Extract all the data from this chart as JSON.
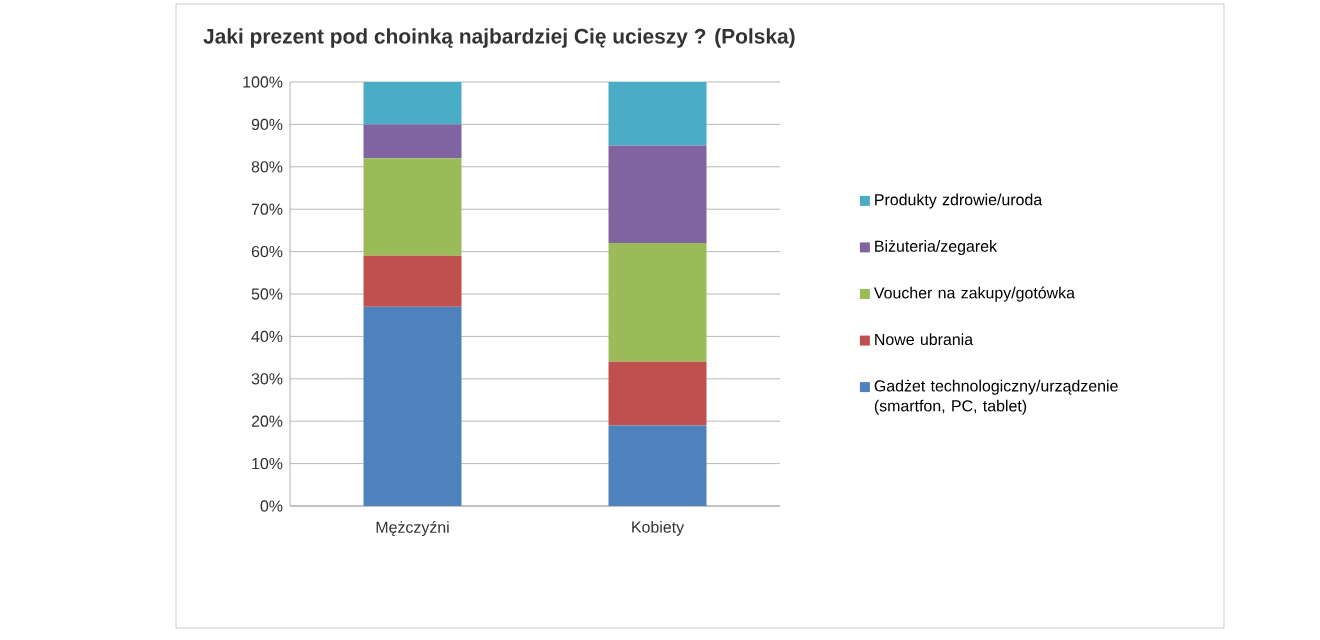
{
  "chart_data": {
    "type": "bar",
    "stacked": true,
    "title": "Jaki prezent pod choinką najbardziej Cię ucieszy ? (Polska)",
    "categories": [
      "Mężczyźni",
      "Kobiety"
    ],
    "series": [
      {
        "name": "Gadżet technologiczny/urządzenie (smartfon, PC, tablet)",
        "color": "#4f81bd",
        "values": [
          47,
          19
        ]
      },
      {
        "name": "Nowe ubrania",
        "color": "#c0504d",
        "values": [
          12,
          15
        ]
      },
      {
        "name": "Voucher na zakupy/gotówka",
        "color": "#9bbb59",
        "values": [
          23,
          28
        ]
      },
      {
        "name": "Biżuteria/zegarek",
        "color": "#8064a2",
        "values": [
          8,
          23
        ]
      },
      {
        "name": "Produkty zdrowie/uroda",
        "color": "#4bacc6",
        "values": [
          10,
          15
        ]
      }
    ],
    "ylim": [
      0,
      100
    ],
    "yticks": [
      {
        "value": 0,
        "label": "0%"
      },
      {
        "value": 10,
        "label": "10%"
      },
      {
        "value": 20,
        "label": "20%"
      },
      {
        "value": 30,
        "label": "30%"
      },
      {
        "value": 40,
        "label": "40%"
      },
      {
        "value": 50,
        "label": "50%"
      },
      {
        "value": 60,
        "label": "60%"
      },
      {
        "value": 70,
        "label": "70%"
      },
      {
        "value": 80,
        "label": "80%"
      },
      {
        "value": 90,
        "label": "90%"
      },
      {
        "value": 100,
        "label": "100%"
      }
    ],
    "grid": "y",
    "legend": "right"
  }
}
